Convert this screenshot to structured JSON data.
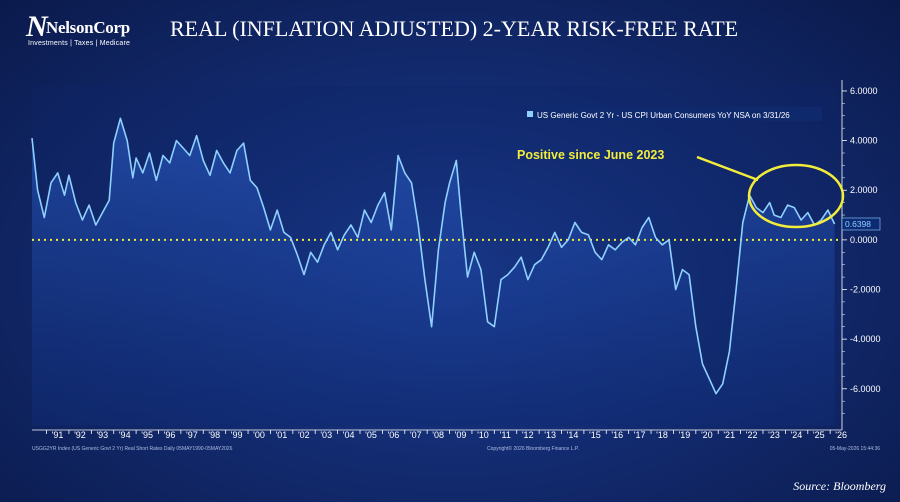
{
  "logo": {
    "name": "NelsonCorp",
    "tagline": "Investments | Taxes | Medicare"
  },
  "title": "REAL (INFLATION ADJUSTED) 2-YEAR RISK-FREE RATE",
  "source": "Source: Bloomberg",
  "footer": {
    "left": "USGG2YR Index (US Generic Govt 2 Yr) Real Short Rates Daily 05MAY1990-05MAY2026",
    "center": "Copyright© 2026 Bloomberg Finance L.P.",
    "right": "05-May-2026 15:44:36"
  },
  "annotation": {
    "text": "Positive since June 2023",
    "color": "#f2ec3a"
  },
  "colors": {
    "line": "#8fd0ff",
    "zero_line": "#f2ec3a",
    "axis": "#ffffff"
  },
  "chart_data": {
    "type": "area",
    "legend": {
      "label": "US Generic Govt 2 Yr - US CPI Urban Consumers YoY NSA on 3/31/26",
      "placement": "top-right"
    },
    "last_value_label": "0.6398",
    "x_ticks": [
      "'91",
      "'92",
      "'93",
      "'94",
      "'95",
      "'96",
      "'97",
      "'98",
      "'99",
      "'00",
      "'01",
      "'02",
      "'03",
      "'04",
      "'05",
      "'06",
      "'07",
      "'08",
      "'09",
      "'10",
      "'11",
      "'12",
      "'13",
      "'14",
      "'15",
      "'16",
      "'17",
      "'18",
      "'19",
      "'20",
      "'21",
      "'22",
      "'23",
      "'24",
      "'25",
      "'26"
    ],
    "y_ticks": [
      "6.0000",
      "4.0000",
      "2.0000",
      "0.0000",
      "-2.0000",
      "-4.0000",
      "-6.0000"
    ],
    "ylim": [
      -7.5,
      6.2
    ],
    "xlim": [
      1990.35,
      2026.35
    ],
    "reference_line": 0,
    "series": [
      {
        "x": [
          1990.35,
          1990.6,
          1990.9,
          1991.2,
          1991.5,
          1991.8,
          1992.0,
          1992.3,
          1992.6,
          1992.9,
          1993.2,
          1993.5,
          1993.8,
          1994.0,
          1994.3,
          1994.6,
          1994.85,
          1995.0,
          1995.3,
          1995.6,
          1995.9,
          1996.2,
          1996.5,
          1996.8,
          1997.1,
          1997.4,
          1997.7,
          1998.0,
          1998.3,
          1998.6,
          1998.9,
          1999.2,
          1999.5,
          1999.8,
          2000.1,
          2000.4,
          2000.7,
          2001.0,
          2001.3,
          2001.6,
          2001.9,
          2002.2,
          2002.5,
          2002.8,
          2003.1,
          2003.4,
          2003.7,
          2004.0,
          2004.3,
          2004.6,
          2004.9,
          2005.2,
          2005.5,
          2005.8,
          2006.1,
          2006.4,
          2006.7,
          2007.0,
          2007.3,
          2007.6,
          2007.9,
          2008.2,
          2008.5,
          2008.8,
          2009.0,
          2009.3,
          2009.5,
          2009.8,
          2010.1,
          2010.4,
          2010.7,
          2011.0,
          2011.3,
          2011.6,
          2011.9,
          2012.2,
          2012.5,
          2012.8,
          2013.1,
          2013.4,
          2013.7,
          2014.0,
          2014.3,
          2014.6,
          2014.9,
          2015.2,
          2015.5,
          2015.8,
          2016.1,
          2016.4,
          2016.7,
          2017.0,
          2017.3,
          2017.6,
          2017.9,
          2018.2,
          2018.5,
          2018.8,
          2019.1,
          2019.4,
          2019.7,
          2020.0,
          2020.3,
          2020.6,
          2020.9,
          2021.2,
          2021.5,
          2021.8,
          2022.1,
          2022.4,
          2022.7,
          2023.0,
          2023.3,
          2023.5,
          2023.8,
          2024.1,
          2024.4,
          2024.7,
          2025.0,
          2025.3,
          2025.6,
          2025.9,
          2026.2
        ],
        "values": [
          4.1,
          2.0,
          0.9,
          2.3,
          2.7,
          1.8,
          2.6,
          1.5,
          0.8,
          1.4,
          0.6,
          1.1,
          1.6,
          3.9,
          4.9,
          4.0,
          2.5,
          3.3,
          2.7,
          3.5,
          2.4,
          3.4,
          3.1,
          4.0,
          3.7,
          3.4,
          4.2,
          3.2,
          2.6,
          3.6,
          3.1,
          2.7,
          3.6,
          3.9,
          2.4,
          2.1,
          1.3,
          0.4,
          1.2,
          0.3,
          0.1,
          -0.6,
          -1.4,
          -0.5,
          -0.9,
          -0.2,
          0.3,
          -0.4,
          0.2,
          0.6,
          0.1,
          1.2,
          0.7,
          1.4,
          1.9,
          0.4,
          3.4,
          2.7,
          2.3,
          0.6,
          -1.6,
          -3.5,
          -0.4,
          1.5,
          2.3,
          3.2,
          1.2,
          -1.5,
          -0.5,
          -1.2,
          -3.3,
          -3.5,
          -1.6,
          -1.4,
          -1.1,
          -0.7,
          -1.6,
          -1.0,
          -0.8,
          -0.3,
          0.3,
          -0.3,
          0.0,
          0.7,
          0.3,
          0.2,
          -0.5,
          -0.8,
          -0.2,
          -0.4,
          -0.1,
          0.1,
          -0.2,
          0.5,
          0.9,
          0.1,
          -0.2,
          0.0,
          -2.0,
          -1.2,
          -1.4,
          -3.5,
          -5.0,
          -5.6,
          -6.2,
          -5.8,
          -4.5,
          -2.0,
          0.7,
          1.8,
          1.3,
          1.1,
          1.5,
          1.0,
          0.9,
          1.4,
          1.3,
          0.8,
          1.1,
          0.6,
          0.8,
          1.2,
          0.64
        ]
      }
    ]
  }
}
